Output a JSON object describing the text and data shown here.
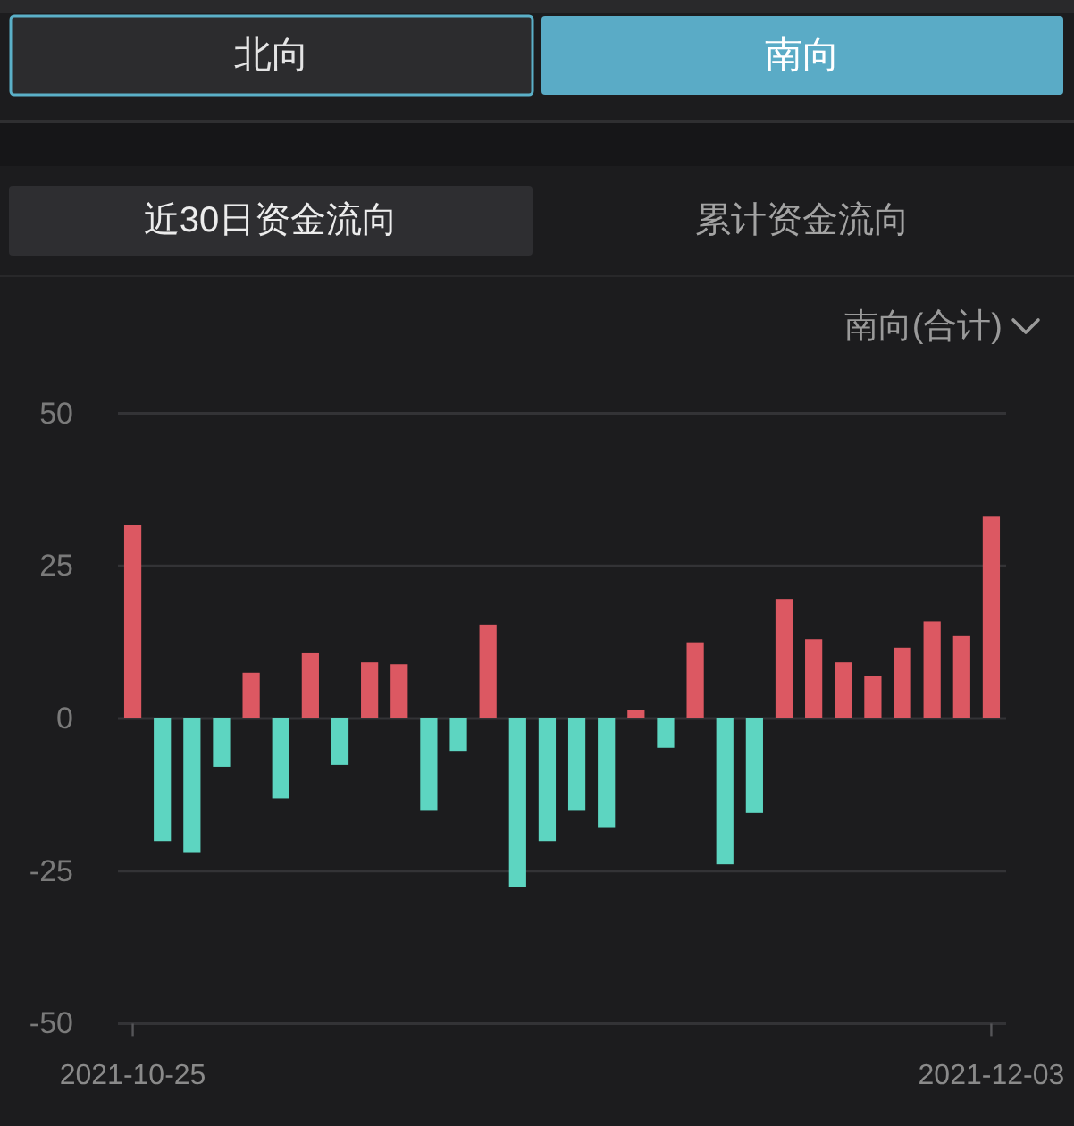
{
  "chart_data": {
    "type": "bar",
    "annotations": [
      "北向",
      "南向",
      "近30日资金流向",
      "累计资金流向",
      "南向(合计)"
    ],
    "categories": [
      "2021-10-25",
      null,
      null,
      null,
      null,
      null,
      null,
      null,
      null,
      null,
      null,
      null,
      null,
      null,
      null,
      null,
      null,
      null,
      null,
      null,
      null,
      null,
      null,
      null,
      null,
      null,
      null,
      null,
      null,
      "2021-12-03"
    ],
    "values": [
      31.7,
      -20.1,
      -21.9,
      -7.9,
      7.5,
      -13.1,
      10.7,
      -7.6,
      9.2,
      8.9,
      -15.0,
      -5.3,
      15.4,
      -27.6,
      -20.1,
      -15.0,
      -17.8,
      1.4,
      -4.8,
      12.5,
      -23.9,
      -15.5,
      19.6,
      13.0,
      9.2,
      6.9,
      11.6,
      15.9,
      13.5,
      33.2
    ],
    "colors": [
      "#dc5862",
      "#5dd5c1",
      "#5dd5c1",
      "#5dd5c1",
      "#dc5862",
      "#5dd5c1",
      "#dc5862",
      "#5dd5c1",
      "#dc5862",
      "#dc5862",
      "#5dd5c1",
      "#5dd5c1",
      "#dc5862",
      "#5dd5c1",
      "#5dd5c1",
      "#5dd5c1",
      "#5dd5c1",
      "#dc5862",
      "#5dd5c1",
      "#dc5862",
      "#5dd5c1",
      "#5dd5c1",
      "#dc5862",
      "#dc5862",
      "#dc5862",
      "#dc5862",
      "#dc5862",
      "#dc5862",
      "#dc5862",
      "#dc5862"
    ],
    "ylim": [
      -50,
      50
    ],
    "yticks": [
      -50,
      -25,
      0,
      25,
      50
    ],
    "grid": "y"
  }
}
